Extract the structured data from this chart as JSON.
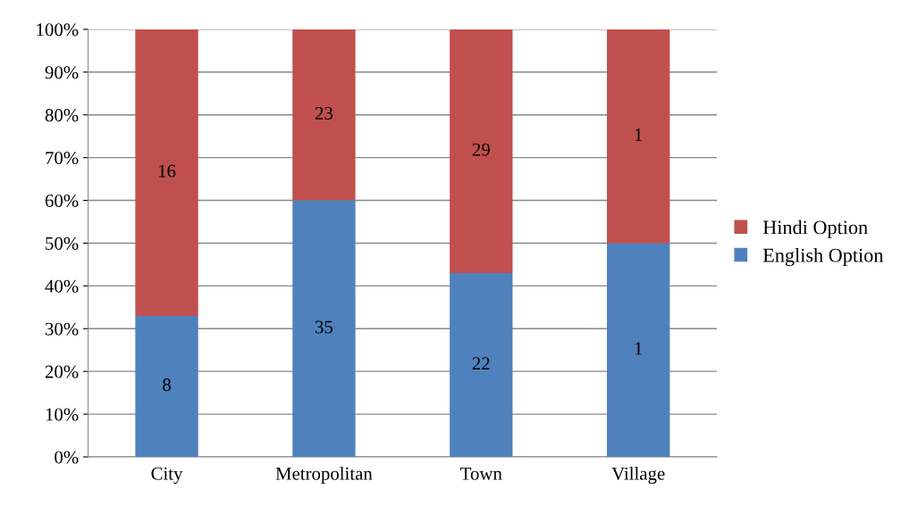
{
  "chart_data": {
    "type": "bar",
    "stacked": true,
    "categories": [
      "City",
      "Metropolitan",
      "Town",
      "Village"
    ],
    "series": [
      {
        "name": "English Option",
        "color": "#4f81bd",
        "values": [
          33,
          60,
          43,
          50
        ]
      },
      {
        "name": "Hindi Option",
        "color": "#c0504d",
        "values": [
          67,
          40,
          57,
          50
        ]
      }
    ],
    "annotations": [
      "8",
      "35",
      "22",
      "1",
      "16",
      "23",
      "29",
      "1"
    ],
    "ylim": [
      0,
      100
    ],
    "yticks": [
      {
        "value": 0,
        "label": "0%"
      },
      {
        "value": 10,
        "label": "10%"
      },
      {
        "value": 20,
        "label": "20%"
      },
      {
        "value": 30,
        "label": "30%"
      },
      {
        "value": 40,
        "label": "40%"
      },
      {
        "value": 50,
        "label": "50%"
      },
      {
        "value": 60,
        "label": "60%"
      },
      {
        "value": 70,
        "label": "70%"
      },
      {
        "value": 80,
        "label": "80%"
      },
      {
        "value": 90,
        "label": "90%"
      },
      {
        "value": 100,
        "label": "100%"
      }
    ],
    "grid": "y",
    "legend": "right"
  }
}
